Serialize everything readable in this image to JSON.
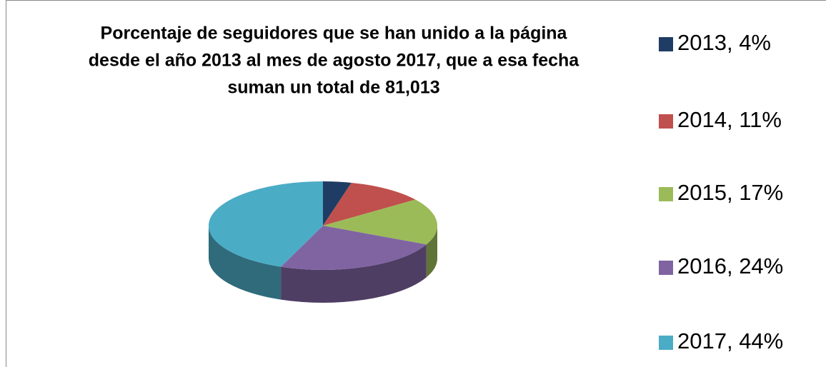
{
  "chart_data": {
    "type": "pie3d",
    "title": [
      "Porcentaje de seguidores que se han unido a la página",
      "desde el año 2013 al mes de agosto 2017, que a esa fecha",
      "suman un total de 81,013"
    ],
    "categories": [
      "2013, 4%",
      "2014, 11%",
      "2015, 17%",
      "2016, 24%",
      "2017, 44%"
    ],
    "values": [
      4,
      11,
      17,
      24,
      44
    ],
    "colors": [
      "#1f3c64",
      "#c0504d",
      "#9bbb59",
      "#8064a2",
      "#4bacc6"
    ],
    "legend": "right"
  }
}
